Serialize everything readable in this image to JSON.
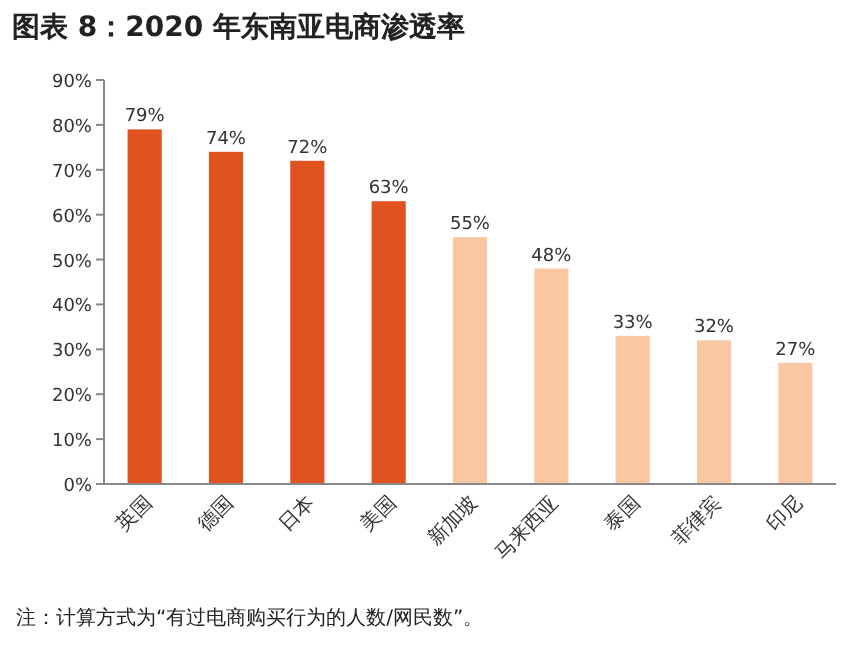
{
  "chart_data": {
    "type": "bar",
    "title": "图表 8：2020 年东南亚电商渗透率",
    "categories": [
      "英国",
      "德国",
      "日本",
      "美国",
      "新加坡",
      "马来西亚",
      "泰国",
      "菲律宾",
      "印尼"
    ],
    "values": [
      79,
      74,
      72,
      63,
      55,
      48,
      33,
      32,
      27
    ],
    "colors": [
      "#e0521f",
      "#e0521f",
      "#e0521f",
      "#e0521f",
      "#f9c8a3",
      "#f9c8a3",
      "#f9c8a3",
      "#f9c8a3",
      "#f9c8a3"
    ],
    "value_labels": [
      "79%",
      "74%",
      "72%",
      "63%",
      "55%",
      "48%",
      "33%",
      "32%",
      "27%"
    ],
    "ylim": [
      0,
      90
    ],
    "yticks": [
      {
        "value": 0,
        "label": "0%"
      },
      {
        "value": 10,
        "label": "10%"
      },
      {
        "value": 20,
        "label": "20%"
      },
      {
        "value": 30,
        "label": "30%"
      },
      {
        "value": 40,
        "label": "40%"
      },
      {
        "value": 50,
        "label": "50%"
      },
      {
        "value": 60,
        "label": "60%"
      },
      {
        "value": 70,
        "label": "70%"
      },
      {
        "value": 80,
        "label": "80%"
      },
      {
        "value": 90,
        "label": "90%"
      }
    ],
    "grid": false,
    "annotations": [
      "注：计算方式为“有过电商购买行为的人数/网民数”。"
    ]
  }
}
